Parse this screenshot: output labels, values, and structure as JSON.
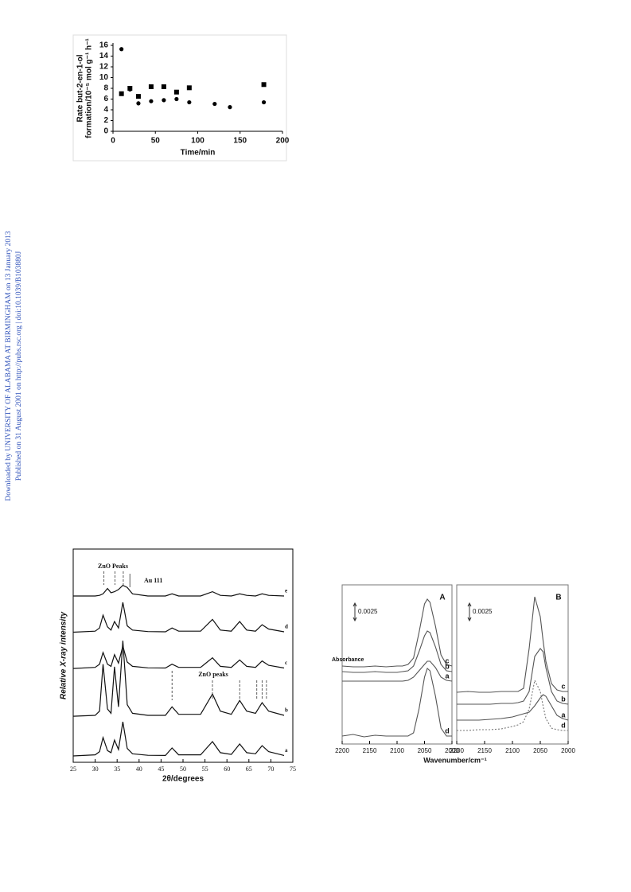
{
  "sidebar": [
    "Downloaded by UNIVERSITY OF ALABAMA AT BIRMINGHAM on 13 January 2013",
    "Published on 31 August 2001 on http://pubs.rsc.org | doi:10.1039/B103880J"
  ],
  "chart_data": [
    {
      "type": "scatter",
      "xlabel": "Time/min",
      "ylabel": [
        "Rate but-2-en-1-ol",
        "formation/10⁻⁵ mol g⁻¹ h⁻¹"
      ],
      "xlim": [
        0,
        200
      ],
      "xticks": [
        0,
        50,
        100,
        150,
        200
      ],
      "ylim": [
        0,
        16
      ],
      "yticks": [
        0,
        2,
        4,
        6,
        8,
        10,
        12,
        14,
        16
      ],
      "series": [
        {
          "marker": "square",
          "color": "#000000",
          "x": [
            10,
            20,
            30,
            45,
            60,
            75,
            90,
            178
          ],
          "values": [
            7,
            8,
            6.5,
            8.3,
            8.3,
            7.3,
            8.1,
            8.7
          ]
        },
        {
          "marker": "circle",
          "color": "#000000",
          "x": [
            10,
            20,
            30,
            45,
            60,
            75,
            90,
            120,
            138,
            178
          ],
          "values": [
            15.3,
            7.8,
            5.2,
            5.6,
            5.8,
            6,
            5.4,
            5.1,
            4.5,
            5.4
          ]
        }
      ]
    },
    {
      "type": "line",
      "xlabel": "2θ/degrees",
      "ylabel": "Relative X-ray intensity",
      "xlim": [
        25,
        75
      ],
      "xticks": [
        25,
        30,
        35,
        40,
        45,
        50,
        55,
        60,
        65,
        70,
        75
      ],
      "ylim": [
        0,
        100
      ],
      "x": [
        25,
        30,
        31,
        31.8,
        32.8,
        33.6,
        34.4,
        35.3,
        36.3,
        37.3,
        38.5,
        42,
        46,
        47.5,
        49,
        54,
        56.7,
        58.5,
        61,
        62.9,
        64.5,
        66.5,
        68,
        69.5,
        73
      ],
      "series": [
        {
          "name": "e",
          "color": "#111111",
          "values": [
            78,
            78,
            78.3,
            79,
            81.5,
            79.5,
            80,
            81,
            83,
            82,
            79,
            78,
            78,
            79,
            78,
            78,
            80,
            78.3,
            78,
            79,
            78.3,
            78,
            79,
            78.3,
            78
          ]
        },
        {
          "name": "d",
          "color": "#111111",
          "values": [
            61,
            61.5,
            63,
            69,
            63.5,
            62,
            66,
            63,
            75,
            64,
            62,
            61.3,
            61.2,
            63,
            61.5,
            61.5,
            67,
            62,
            61.5,
            66,
            62,
            61.5,
            64.5,
            62.5,
            61.2
          ]
        },
        {
          "name": "c",
          "color": "#111111",
          "values": [
            44,
            44.5,
            46,
            51.5,
            46,
            45,
            50.5,
            46.5,
            54.5,
            47,
            45,
            44.3,
            44.2,
            46,
            44.5,
            44.5,
            49,
            45,
            44.5,
            48,
            45,
            44.5,
            47.5,
            45.5,
            44.2
          ]
        },
        {
          "name": "b",
          "color": "#111111",
          "values": [
            21.6,
            22,
            24,
            46,
            25,
            23,
            44.8,
            26,
            57,
            27,
            23,
            22,
            22,
            26,
            22.5,
            22.5,
            32,
            24,
            22.5,
            29,
            24,
            23,
            28,
            24,
            22
          ]
        },
        {
          "name": "a",
          "color": "#111111",
          "values": [
            3,
            3.5,
            5,
            11.6,
            5.5,
            4.5,
            10.4,
            6,
            19,
            6.5,
            4,
            3.3,
            3.2,
            6.7,
            3.5,
            3.5,
            9.7,
            4.5,
            3.7,
            8.6,
            4.5,
            4,
            7.8,
            5,
            3.2
          ]
        }
      ],
      "annotations": [
        {
          "text": "ZnO Peaks",
          "x": [
            32,
            34.5,
            36.4
          ]
        },
        {
          "text": "Au 111",
          "x": [
            37.9
          ]
        },
        {
          "text": "ZnO peaks",
          "x": [
            47.5,
            56.7,
            62.9,
            66.8,
            68,
            69
          ]
        }
      ]
    },
    {
      "type": "line",
      "panel": "A",
      "ylabel": "Absorbance",
      "xlabel": "Wavenumber/cm⁻¹",
      "scale_label": "0.0025",
      "xlim": [
        2200,
        2000
      ],
      "xticks": [
        2200,
        2150,
        2100,
        2050,
        2000
      ],
      "ylim": [
        0,
        100
      ],
      "x": [
        2200,
        2180,
        2160,
        2140,
        2120,
        2100,
        2090,
        2080,
        2070,
        2060,
        2050,
        2045,
        2040,
        2030,
        2020,
        2010,
        2000
      ],
      "series": [
        {
          "name": "c",
          "color": "#555555",
          "values": [
            49,
            48.5,
            48.5,
            49,
            48.5,
            49,
            49,
            50,
            54,
            70,
            88,
            91,
            89,
            74,
            56,
            50,
            49
          ]
        },
        {
          "name": "b",
          "color": "#555555",
          "values": [
            45.5,
            45,
            45,
            45.5,
            45,
            45,
            45.5,
            46,
            49,
            58,
            68,
            71,
            70,
            61,
            50,
            46,
            45.5
          ]
        },
        {
          "name": "a",
          "color": "#555555",
          "values": [
            39.5,
            39.5,
            39.5,
            39.5,
            39.5,
            39.5,
            39.5,
            40,
            42,
            46,
            50,
            52,
            52,
            48,
            42,
            40,
            39.5
          ]
        },
        {
          "name": "d",
          "color": "#555555",
          "values": [
            5,
            6,
            4.5,
            5.5,
            5,
            5,
            5,
            5,
            7,
            22,
            42,
            47.5,
            46,
            30,
            10,
            5,
            5
          ]
        }
      ]
    },
    {
      "type": "line",
      "panel": "B",
      "scale_label": "0.0025",
      "xlim": [
        2200,
        2000
      ],
      "xticks": [
        2200,
        2150,
        2100,
        2050,
        2000
      ],
      "ylim": [
        0,
        100
      ],
      "x": [
        2200,
        2180,
        2160,
        2140,
        2120,
        2100,
        2090,
        2080,
        2070,
        2060,
        2050,
        2045,
        2040,
        2030,
        2020,
        2010,
        2000
      ],
      "series": [
        {
          "name": "c",
          "color": "#555555",
          "values": [
            32.5,
            33,
            32.5,
            32.5,
            33,
            33,
            33,
            35,
            60,
            92.5,
            80,
            65,
            52,
            38,
            34,
            33,
            33
          ]
        },
        {
          "name": "b",
          "color": "#555555",
          "values": [
            25,
            25,
            25,
            25,
            25.5,
            25.5,
            26,
            27,
            33,
            55,
            60,
            58,
            48,
            33,
            27,
            25.5,
            25
          ]
        },
        {
          "name": "a",
          "color": "#555555",
          "values": [
            15,
            15,
            15,
            15.5,
            16,
            17,
            18,
            19,
            20,
            24,
            29,
            31,
            30,
            24,
            18,
            16,
            15
          ]
        },
        {
          "name": "d",
          "color": "#777777",
          "dashed": true,
          "values": [
            8.5,
            8.5,
            9,
            9,
            9.5,
            11,
            12,
            14,
            22,
            40,
            33,
            24,
            16,
            10,
            9,
            8.5,
            8.5
          ]
        }
      ]
    }
  ]
}
